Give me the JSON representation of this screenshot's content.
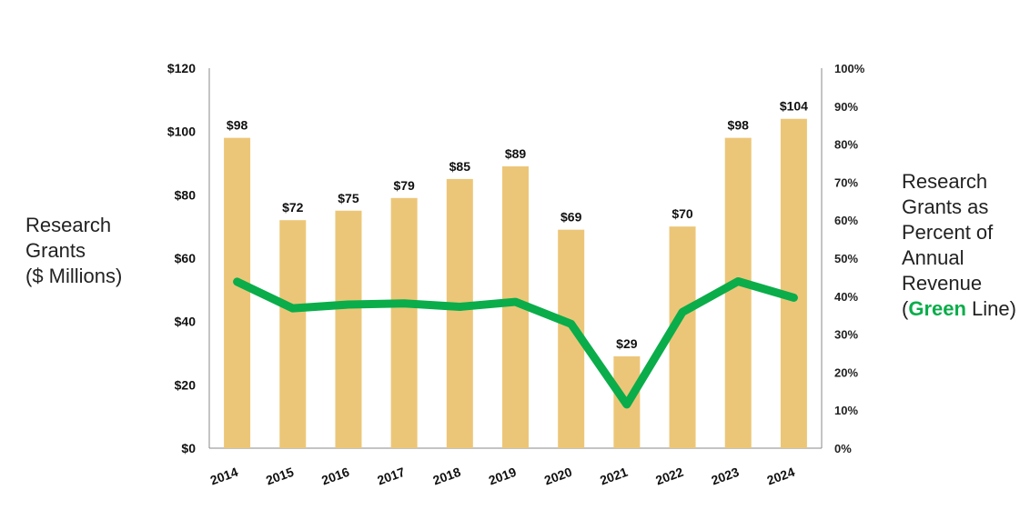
{
  "chart_data": {
    "type": "bar+line",
    "categories": [
      "2014",
      "2015",
      "2016",
      "2017",
      "2018",
      "2019",
      "2020",
      "2021",
      "2022",
      "2023",
      "2024"
    ],
    "series": [
      {
        "name": "Research Grants ($ Millions)",
        "type": "bar",
        "axis": "left",
        "values": [
          98,
          72,
          75,
          79,
          85,
          89,
          69,
          29,
          70,
          98,
          104
        ],
        "labels": [
          "$98",
          "$72",
          "$75",
          "$79",
          "$85",
          "$89",
          "$69",
          "$29",
          "$70",
          "$98",
          "$104"
        ],
        "color": "#ecc678"
      },
      {
        "name": "Research Grants as Percent of Annual Revenue",
        "type": "line",
        "axis": "right",
        "values": [
          43.8,
          36.8,
          37.8,
          38.1,
          37.2,
          38.5,
          32.7,
          11.5,
          35.8,
          43.9,
          39.6
        ],
        "color": "#0aad4a"
      }
    ],
    "left_axis": {
      "min": 0,
      "max": 120,
      "ticks": [
        "$0",
        "$20",
        "$40",
        "$60",
        "$80",
        "$100",
        "$120"
      ]
    },
    "right_axis": {
      "min": 0,
      "max": 100,
      "ticks": [
        "0%",
        "10%",
        "20%",
        "30%",
        "40%",
        "50%",
        "60%",
        "70%",
        "80%",
        "90%",
        "100%"
      ]
    },
    "left_title_lines": [
      "Research",
      "Grants",
      "($ Millions)"
    ],
    "right_title": {
      "lines": [
        "Research",
        "Grants as",
        "Percent of",
        "Annual",
        "Revenue"
      ],
      "last_line_open": "(",
      "last_line_highlight": "Green",
      "last_line_close": " Line)"
    }
  }
}
